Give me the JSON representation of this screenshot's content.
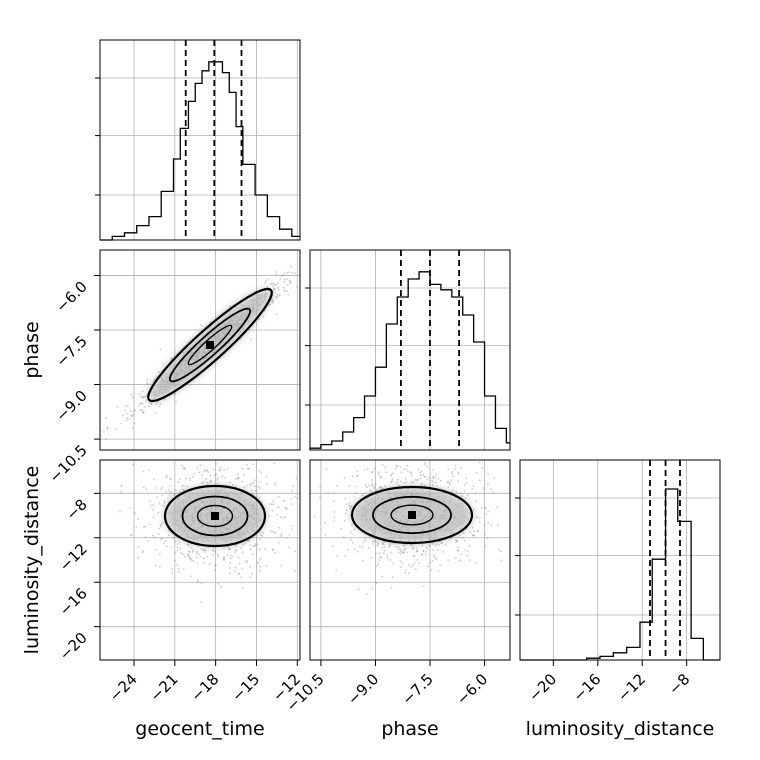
{
  "chart_data": {
    "type": "corner",
    "parameters": [
      "geocent_time",
      "phase",
      "luminosity_distance"
    ],
    "axis_labels": [
      "geocent_time",
      "phase",
      "luminosity_distance"
    ],
    "quantile_lines": "dashed (16/50/84%)",
    "grid": true,
    "marginals": [
      {
        "name": "geocent_time",
        "range": [
          -26.5,
          -11.8
        ],
        "quantiles": [
          -20.2,
          -18.1,
          -16.1
        ],
        "bins": [
          -26.5,
          -25.6,
          -24.7,
          -23.8,
          -22.9,
          -22.0,
          -21.1,
          -20.6,
          -20.0,
          -19.5,
          -19.0,
          -18.5,
          -18.0,
          -17.5,
          -17.0,
          -16.5,
          -16.0,
          -15.1,
          -14.2,
          -13.3,
          -12.4,
          -11.8
        ],
        "counts": [
          0,
          0.02,
          0.04,
          0.08,
          0.13,
          0.27,
          0.45,
          0.62,
          0.77,
          0.87,
          0.94,
          0.99,
          0.99,
          0.93,
          0.82,
          0.63,
          0.42,
          0.25,
          0.13,
          0.06,
          0.02
        ]
      },
      {
        "name": "phase",
        "range": [
          -10.8,
          -5.3
        ],
        "quantiles": [
          -8.3,
          -7.5,
          -6.7
        ],
        "bins": [
          -10.8,
          -10.5,
          -10.2,
          -9.9,
          -9.6,
          -9.3,
          -9.0,
          -8.7,
          -8.4,
          -8.1,
          -7.8,
          -7.5,
          -7.2,
          -6.9,
          -6.6,
          -6.3,
          -6.0,
          -5.7,
          -5.4,
          -5.3
        ],
        "counts": [
          0.01,
          0.03,
          0.05,
          0.1,
          0.18,
          0.3,
          0.46,
          0.7,
          0.85,
          0.95,
          0.99,
          0.92,
          0.89,
          0.85,
          0.75,
          0.6,
          0.3,
          0.12,
          0.04
        ]
      },
      {
        "name": "luminosity_distance",
        "range": [
          -23.0,
          -5.0
        ],
        "quantiles": [
          -11.3,
          -9.9,
          -8.6
        ],
        "bins": [
          -23.0,
          -17.0,
          -15.8,
          -14.6,
          -13.4,
          -12.2,
          -11.1,
          -9.9,
          -8.8,
          -7.6,
          -6.5,
          -5.0
        ],
        "counts": [
          0,
          0.01,
          0.02,
          0.04,
          0.07,
          0.21,
          0.56,
          0.95,
          0.77,
          0.12,
          0
        ]
      }
    ],
    "pairs": [
      {
        "x": "geocent_time",
        "y": "phase",
        "correlation": "strong positive",
        "xlim": [
          -26.5,
          -11.8
        ],
        "ylim": [
          -10.8,
          -5.3
        ]
      },
      {
        "x": "geocent_time",
        "y": "luminosity_distance",
        "xlim": [
          -26.5,
          -11.8
        ],
        "ylim": [
          -23.0,
          -5.0
        ]
      },
      {
        "x": "phase",
        "y": "luminosity_distance",
        "xlim": [
          -10.8,
          -5.3
        ],
        "ylim": [
          -23.0,
          -5.0
        ]
      }
    ],
    "ticks": {
      "geocent_time": [
        "−24",
        "−21",
        "−18",
        "−15",
        "−12"
      ],
      "phase_y": [
        "−6.0",
        "−7.5",
        "−9.0",
        "−10.5"
      ],
      "phase_x": [
        "−10.5",
        "−9.0",
        "−7.5",
        "−6.0"
      ],
      "luminosity_distance_y": [
        "−8",
        "−12",
        "−16",
        "−20"
      ],
      "luminosity_distance_x": [
        "−20",
        "−16",
        "−12",
        "−8"
      ]
    },
    "tick_values": {
      "geocent_time": [
        -24,
        -21,
        -18,
        -15,
        -12
      ],
      "phase_y": [
        -6.0,
        -7.5,
        -9.0,
        -10.5
      ],
      "phase_x": [
        -10.5,
        -9.0,
        -7.5,
        -6.0
      ],
      "luminosity_distance_y": [
        -8,
        -12,
        -16,
        -20
      ],
      "luminosity_distance_x": [
        -20,
        -16,
        -12,
        -8
      ]
    }
  }
}
